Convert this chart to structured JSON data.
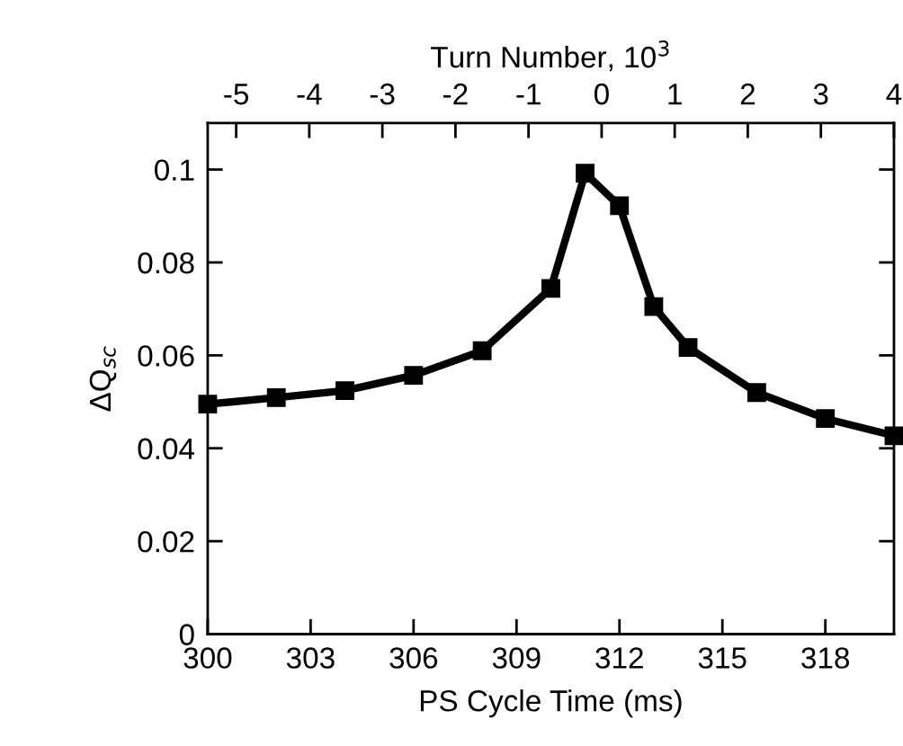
{
  "chart_data": {
    "type": "line",
    "xlabel": "PS Cycle Time (ms)",
    "ylabel": "ΔQ$_{sc}$",
    "x2label": "Turn Number, 10$^{3}$",
    "xlim": [
      300,
      320
    ],
    "xticks": [
      300,
      303,
      306,
      309,
      312,
      315,
      318
    ],
    "ylim": [
      0,
      0.11
    ],
    "yticks": [
      0,
      0.02,
      0.04,
      0.06,
      0.08,
      0.1
    ],
    "x2lim": [
      -5.39,
      4.0
    ],
    "x2ticks": [
      -5,
      -4,
      -3,
      -2,
      -1,
      0,
      1,
      2,
      3,
      4
    ],
    "marker": "square",
    "line_style": "solid",
    "grid": false,
    "legend": false,
    "series": [
      {
        "color": "#000000",
        "x": [
          300,
          302,
          304,
          306,
          308,
          310,
          311,
          312,
          313,
          314,
          316,
          318,
          320
        ],
        "values": [
          0.0495,
          0.0509,
          0.0524,
          0.0557,
          0.061,
          0.0744,
          0.0992,
          0.0922,
          0.0705,
          0.0617,
          0.052,
          0.0464,
          0.0427
        ]
      }
    ]
  }
}
